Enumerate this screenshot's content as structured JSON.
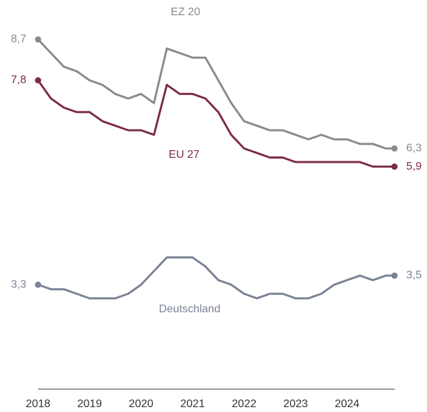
{
  "chart_data": {
    "type": "line",
    "x": [
      2018,
      2018.25,
      2018.5,
      2018.75,
      2019,
      2019.25,
      2019.5,
      2019.75,
      2020,
      2020.25,
      2020.5,
      2020.75,
      2021,
      2021.25,
      2021.5,
      2021.75,
      2022,
      2022.25,
      2022.5,
      2022.75,
      2023,
      2023.25,
      2023.5,
      2023.75,
      2024,
      2024.25,
      2024.5,
      2024.75,
      2024.92
    ],
    "xlim": [
      2018,
      2024.92
    ],
    "xticks": [
      2018,
      2019,
      2020,
      2021,
      2022,
      2023,
      2024
    ],
    "ylim": [
      1,
      9.5
    ],
    "series": [
      {
        "name": "EZ 20",
        "color": "#8a8a8a",
        "values": [
          8.7,
          8.4,
          8.1,
          8.0,
          7.8,
          7.7,
          7.5,
          7.4,
          7.5,
          7.3,
          8.5,
          8.4,
          8.3,
          8.3,
          7.8,
          7.3,
          6.9,
          6.8,
          6.7,
          6.7,
          6.6,
          6.5,
          6.6,
          6.5,
          6.5,
          6.4,
          6.4,
          6.3,
          6.3
        ],
        "value_labels": [
          "8,7",
          null,
          null,
          null,
          null,
          null,
          null,
          null,
          null,
          null,
          null,
          null,
          null,
          null,
          null,
          null,
          null,
          null,
          null,
          null,
          null,
          null,
          null,
          null,
          null,
          null,
          null,
          null,
          "6,3"
        ]
      },
      {
        "name": "EU 27",
        "color": "#7b2c44",
        "values": [
          7.8,
          7.4,
          7.2,
          7.1,
          7.1,
          6.9,
          6.8,
          6.7,
          6.7,
          6.6,
          7.7,
          7.5,
          7.5,
          7.4,
          7.1,
          6.6,
          6.3,
          6.2,
          6.1,
          6.1,
          6.0,
          6.0,
          6.0,
          6.0,
          6.0,
          6.0,
          5.9,
          5.9,
          5.9
        ],
        "value_labels": [
          "7,8",
          null,
          null,
          null,
          null,
          null,
          null,
          null,
          null,
          null,
          null,
          null,
          null,
          null,
          null,
          null,
          null,
          null,
          null,
          null,
          null,
          null,
          null,
          null,
          null,
          null,
          null,
          null,
          "5,9"
        ]
      },
      {
        "name": "Deutschland",
        "color": "#7a8296",
        "values": [
          3.3,
          3.2,
          3.2,
          3.1,
          3.0,
          3.0,
          3.0,
          3.1,
          3.3,
          3.6,
          3.9,
          3.9,
          3.9,
          3.7,
          3.4,
          3.3,
          3.1,
          3.0,
          3.1,
          3.1,
          3.0,
          3.0,
          3.1,
          3.3,
          3.4,
          3.5,
          3.4,
          3.5,
          3.5
        ],
        "value_labels": [
          "3,3",
          null,
          null,
          null,
          null,
          null,
          null,
          null,
          null,
          null,
          null,
          null,
          null,
          null,
          null,
          null,
          null,
          null,
          null,
          null,
          null,
          null,
          null,
          null,
          null,
          null,
          null,
          null,
          "3,5"
        ]
      }
    ]
  }
}
